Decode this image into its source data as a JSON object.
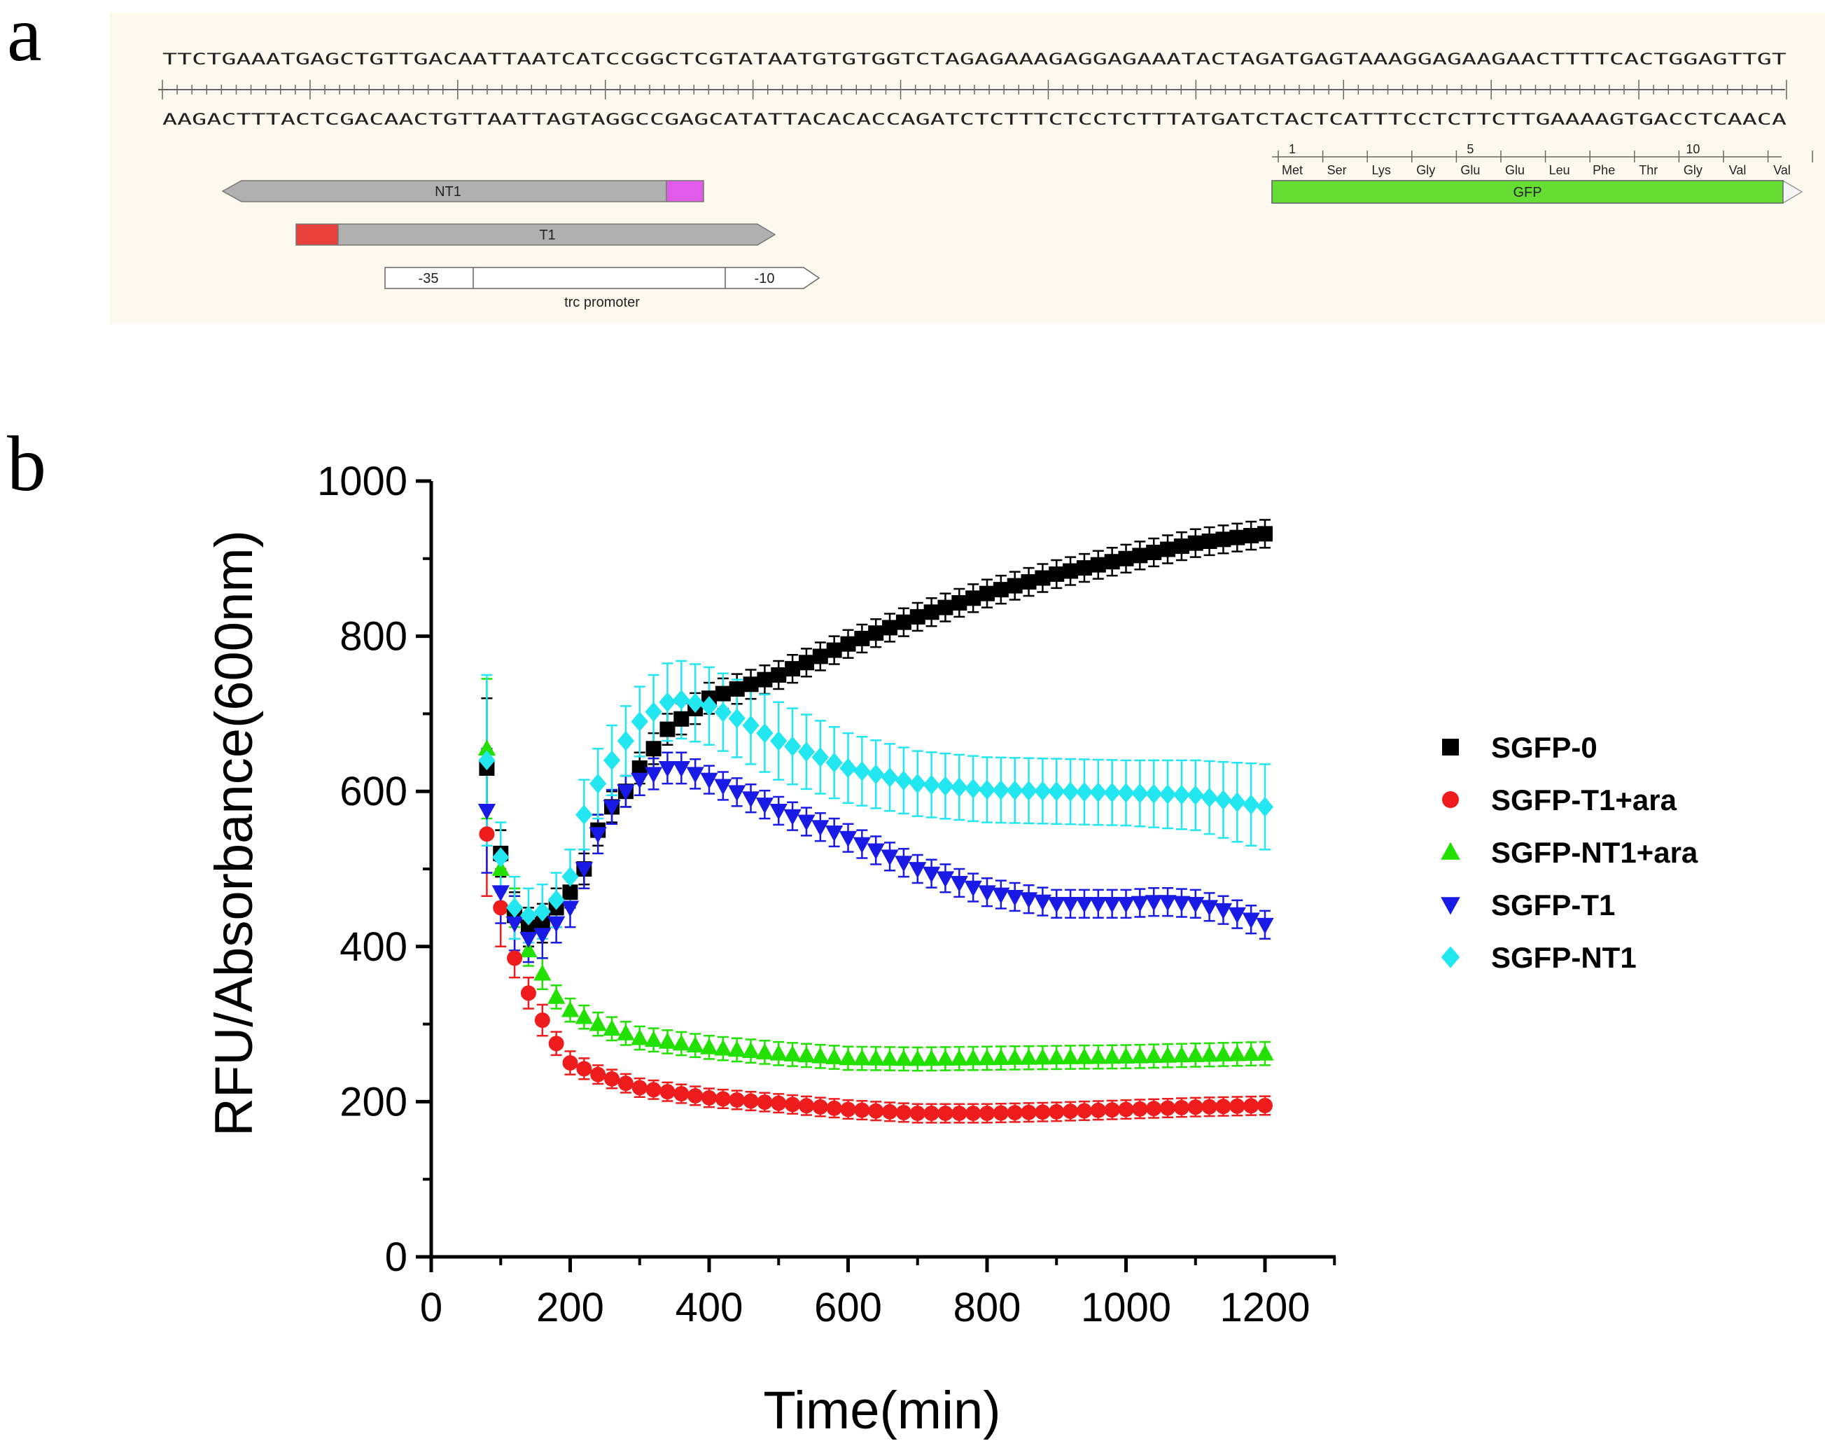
{
  "panel_a": {
    "letter": "a",
    "top_strand": "TTCTGAAATGAGCTGTTGACAATTAATCATCCGGCTCGTATAATGTGTGGTCTAGAGAAAGAGGAGAAATACTAGATGAGTAAAGGAGAAGAACTTTTCACTGGAGTTGT",
    "bottom_strand": "AAGACTTTACTCGACAACTGTTAATTAGTAGGCCGAGCATATTACACACCAGATCTCTTTCTCCTCTTTATGATCTACTCATTTCCTCTTCTTGAAAAGTGACCTCAACA",
    "features": {
      "nt1": "NT1",
      "t1": "T1",
      "minus35": "-35",
      "minus10": "-10",
      "promoter": "trc promoter",
      "gfp": "GFP"
    },
    "amino_acids": [
      "Met",
      "Ser",
      "Lys",
      "Gly",
      "Glu",
      "Glu",
      "Leu",
      "Phe",
      "Thr",
      "Gly",
      "Val",
      "Val"
    ],
    "aa_numbers": [
      "1",
      "5",
      "10"
    ],
    "colors": {
      "gfp": "#66dd33",
      "t1_marker": "#e8403a",
      "nt1_marker": "#e05ce8",
      "arrow": "#b0b0b0",
      "background": "#fdf9ef"
    }
  },
  "panel_b": {
    "letter": "b"
  },
  "chart_data": {
    "type": "scatter",
    "title": "",
    "xlabel": "Time(min)",
    "ylabel": "RFU/Absorbance(600nm)",
    "xlim": [
      0,
      1300
    ],
    "ylim": [
      0,
      1000
    ],
    "xticks": [
      "0",
      "200",
      "400",
      "600",
      "800",
      "1000",
      "1200"
    ],
    "yticks": [
      "0",
      "200",
      "400",
      "600",
      "800",
      "1000"
    ],
    "error_bars": true,
    "sampling_interval_min": 20,
    "legend_position": "right",
    "series": [
      {
        "name": "SGFP-0",
        "marker": "square",
        "color": "#000000",
        "x": [
          80,
          100,
          120,
          140,
          160,
          180,
          200,
          220,
          240,
          260,
          280,
          300,
          340,
          400,
          500,
          600,
          700,
          800,
          900,
          1000,
          1100,
          1200
        ],
        "y": [
          630,
          520,
          440,
          425,
          430,
          450,
          470,
          500,
          550,
          580,
          600,
          630,
          680,
          720,
          750,
          790,
          825,
          855,
          880,
          900,
          920,
          932
        ],
        "err": [
          90,
          30,
          30,
          25,
          25,
          25,
          20,
          20,
          20,
          20,
          20,
          20,
          20,
          20,
          18,
          18,
          18,
          18,
          18,
          18,
          18,
          18
        ]
      },
      {
        "name": "SGFP-T1+ara",
        "marker": "circle",
        "color": "#ee1c1c",
        "x": [
          80,
          100,
          120,
          140,
          160,
          180,
          200,
          240,
          300,
          400,
          500,
          600,
          700,
          800,
          900,
          1000,
          1100,
          1200
        ],
        "y": [
          545,
          450,
          385,
          340,
          305,
          275,
          250,
          235,
          218,
          205,
          198,
          190,
          185,
          185,
          187,
          190,
          193,
          195
        ],
        "err": [
          80,
          50,
          25,
          20,
          20,
          15,
          15,
          12,
          12,
          12,
          12,
          12,
          12,
          12,
          12,
          12,
          12,
          12
        ]
      },
      {
        "name": "SGFP-NT1+ara",
        "marker": "triangle-up",
        "color": "#22e000",
        "x": [
          80,
          100,
          120,
          140,
          160,
          180,
          200,
          240,
          300,
          400,
          500,
          600,
          700,
          800,
          900,
          1000,
          1100,
          1200
        ],
        "y": [
          655,
          500,
          450,
          395,
          365,
          335,
          318,
          300,
          282,
          270,
          262,
          256,
          255,
          256,
          257,
          258,
          260,
          262
        ],
        "err": [
          90,
          50,
          25,
          20,
          20,
          15,
          15,
          15,
          15,
          15,
          15,
          15,
          15,
          15,
          15,
          15,
          15,
          15
        ]
      },
      {
        "name": "SGFP-T1",
        "marker": "triangle-down",
        "color": "#1a1ae6",
        "x": [
          80,
          100,
          120,
          140,
          160,
          180,
          200,
          220,
          240,
          260,
          280,
          300,
          340,
          360,
          400,
          450,
          500,
          600,
          700,
          800,
          900,
          1000,
          1050,
          1100,
          1150,
          1200
        ],
        "y": [
          575,
          470,
          430,
          410,
          415,
          430,
          450,
          500,
          545,
          580,
          600,
          615,
          630,
          630,
          615,
          595,
          575,
          540,
          500,
          470,
          455,
          455,
          458,
          455,
          445,
          428
        ],
        "err": [
          80,
          40,
          35,
          30,
          30,
          25,
          25,
          25,
          25,
          22,
          20,
          20,
          20,
          20,
          18,
          18,
          18,
          18,
          18,
          18,
          18,
          18,
          18,
          18,
          18,
          18
        ]
      },
      {
        "name": "SGFP-NT1",
        "marker": "diamond",
        "color": "#22e6f0",
        "x": [
          80,
          100,
          120,
          140,
          160,
          180,
          200,
          220,
          240,
          260,
          280,
          300,
          340,
          360,
          400,
          450,
          500,
          600,
          700,
          800,
          900,
          1000,
          1100,
          1200
        ],
        "y": [
          640,
          515,
          450,
          440,
          445,
          460,
          490,
          570,
          610,
          640,
          665,
          690,
          715,
          718,
          710,
          690,
          665,
          630,
          610,
          602,
          600,
          598,
          595,
          580
        ],
        "err": [
          110,
          45,
          40,
          35,
          35,
          35,
          35,
          45,
          45,
          45,
          45,
          45,
          50,
          50,
          50,
          50,
          50,
          45,
          42,
          42,
          42,
          42,
          45,
          55
        ]
      }
    ]
  }
}
